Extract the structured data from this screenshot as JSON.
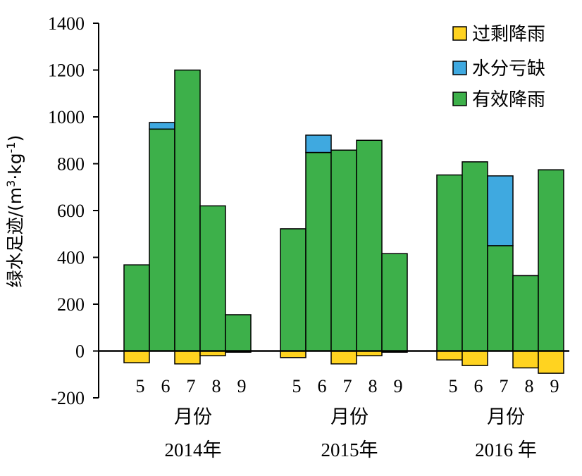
{
  "chart_data": {
    "type": "bar",
    "stacked": true,
    "ylabel_main": "绿水足迹/(m",
    "ylabel_sup1": "3",
    "ylabel_mid": "·kg",
    "ylabel_sup2": "-1",
    "ylabel_end": ")",
    "ylim": [
      -200,
      1400
    ],
    "yticks": [
      "-200",
      "0",
      "200",
      "400",
      "600",
      "800",
      "1000",
      "1200",
      "1400"
    ],
    "legend": [
      {
        "name": "过剩降雨",
        "color": "#FFD320"
      },
      {
        "name": "水分亏缺",
        "color": "#3FA9E0"
      },
      {
        "name": "有效降雨",
        "color": "#3DB04A"
      }
    ],
    "groups": [
      {
        "year_label": "2014年",
        "month_label": "月份",
        "months": [
          "5",
          "6",
          "7",
          "8",
          "9"
        ],
        "effective_rain": [
          368,
          948,
          1200,
          620,
          155
        ],
        "water_deficit": [
          0,
          28,
          0,
          0,
          0
        ],
        "excess_rain": [
          -50,
          0,
          -55,
          -20,
          -5
        ]
      },
      {
        "year_label": "2015年",
        "month_label": "月份",
        "months": [
          "5",
          "6",
          "7",
          "8",
          "9"
        ],
        "effective_rain": [
          522,
          848,
          858,
          900,
          416
        ],
        "water_deficit": [
          0,
          74,
          0,
          0,
          0
        ],
        "excess_rain": [
          -28,
          0,
          -55,
          -20,
          -5
        ]
      },
      {
        "year_label": "2016 年",
        "month_label": "月份",
        "months": [
          "5",
          "6",
          "7",
          "8",
          "9"
        ],
        "effective_rain": [
          752,
          808,
          450,
          322,
          774
        ],
        "water_deficit": [
          0,
          0,
          298,
          0,
          0
        ],
        "excess_rain": [
          -38,
          -62,
          0,
          -72,
          -95
        ]
      }
    ]
  }
}
